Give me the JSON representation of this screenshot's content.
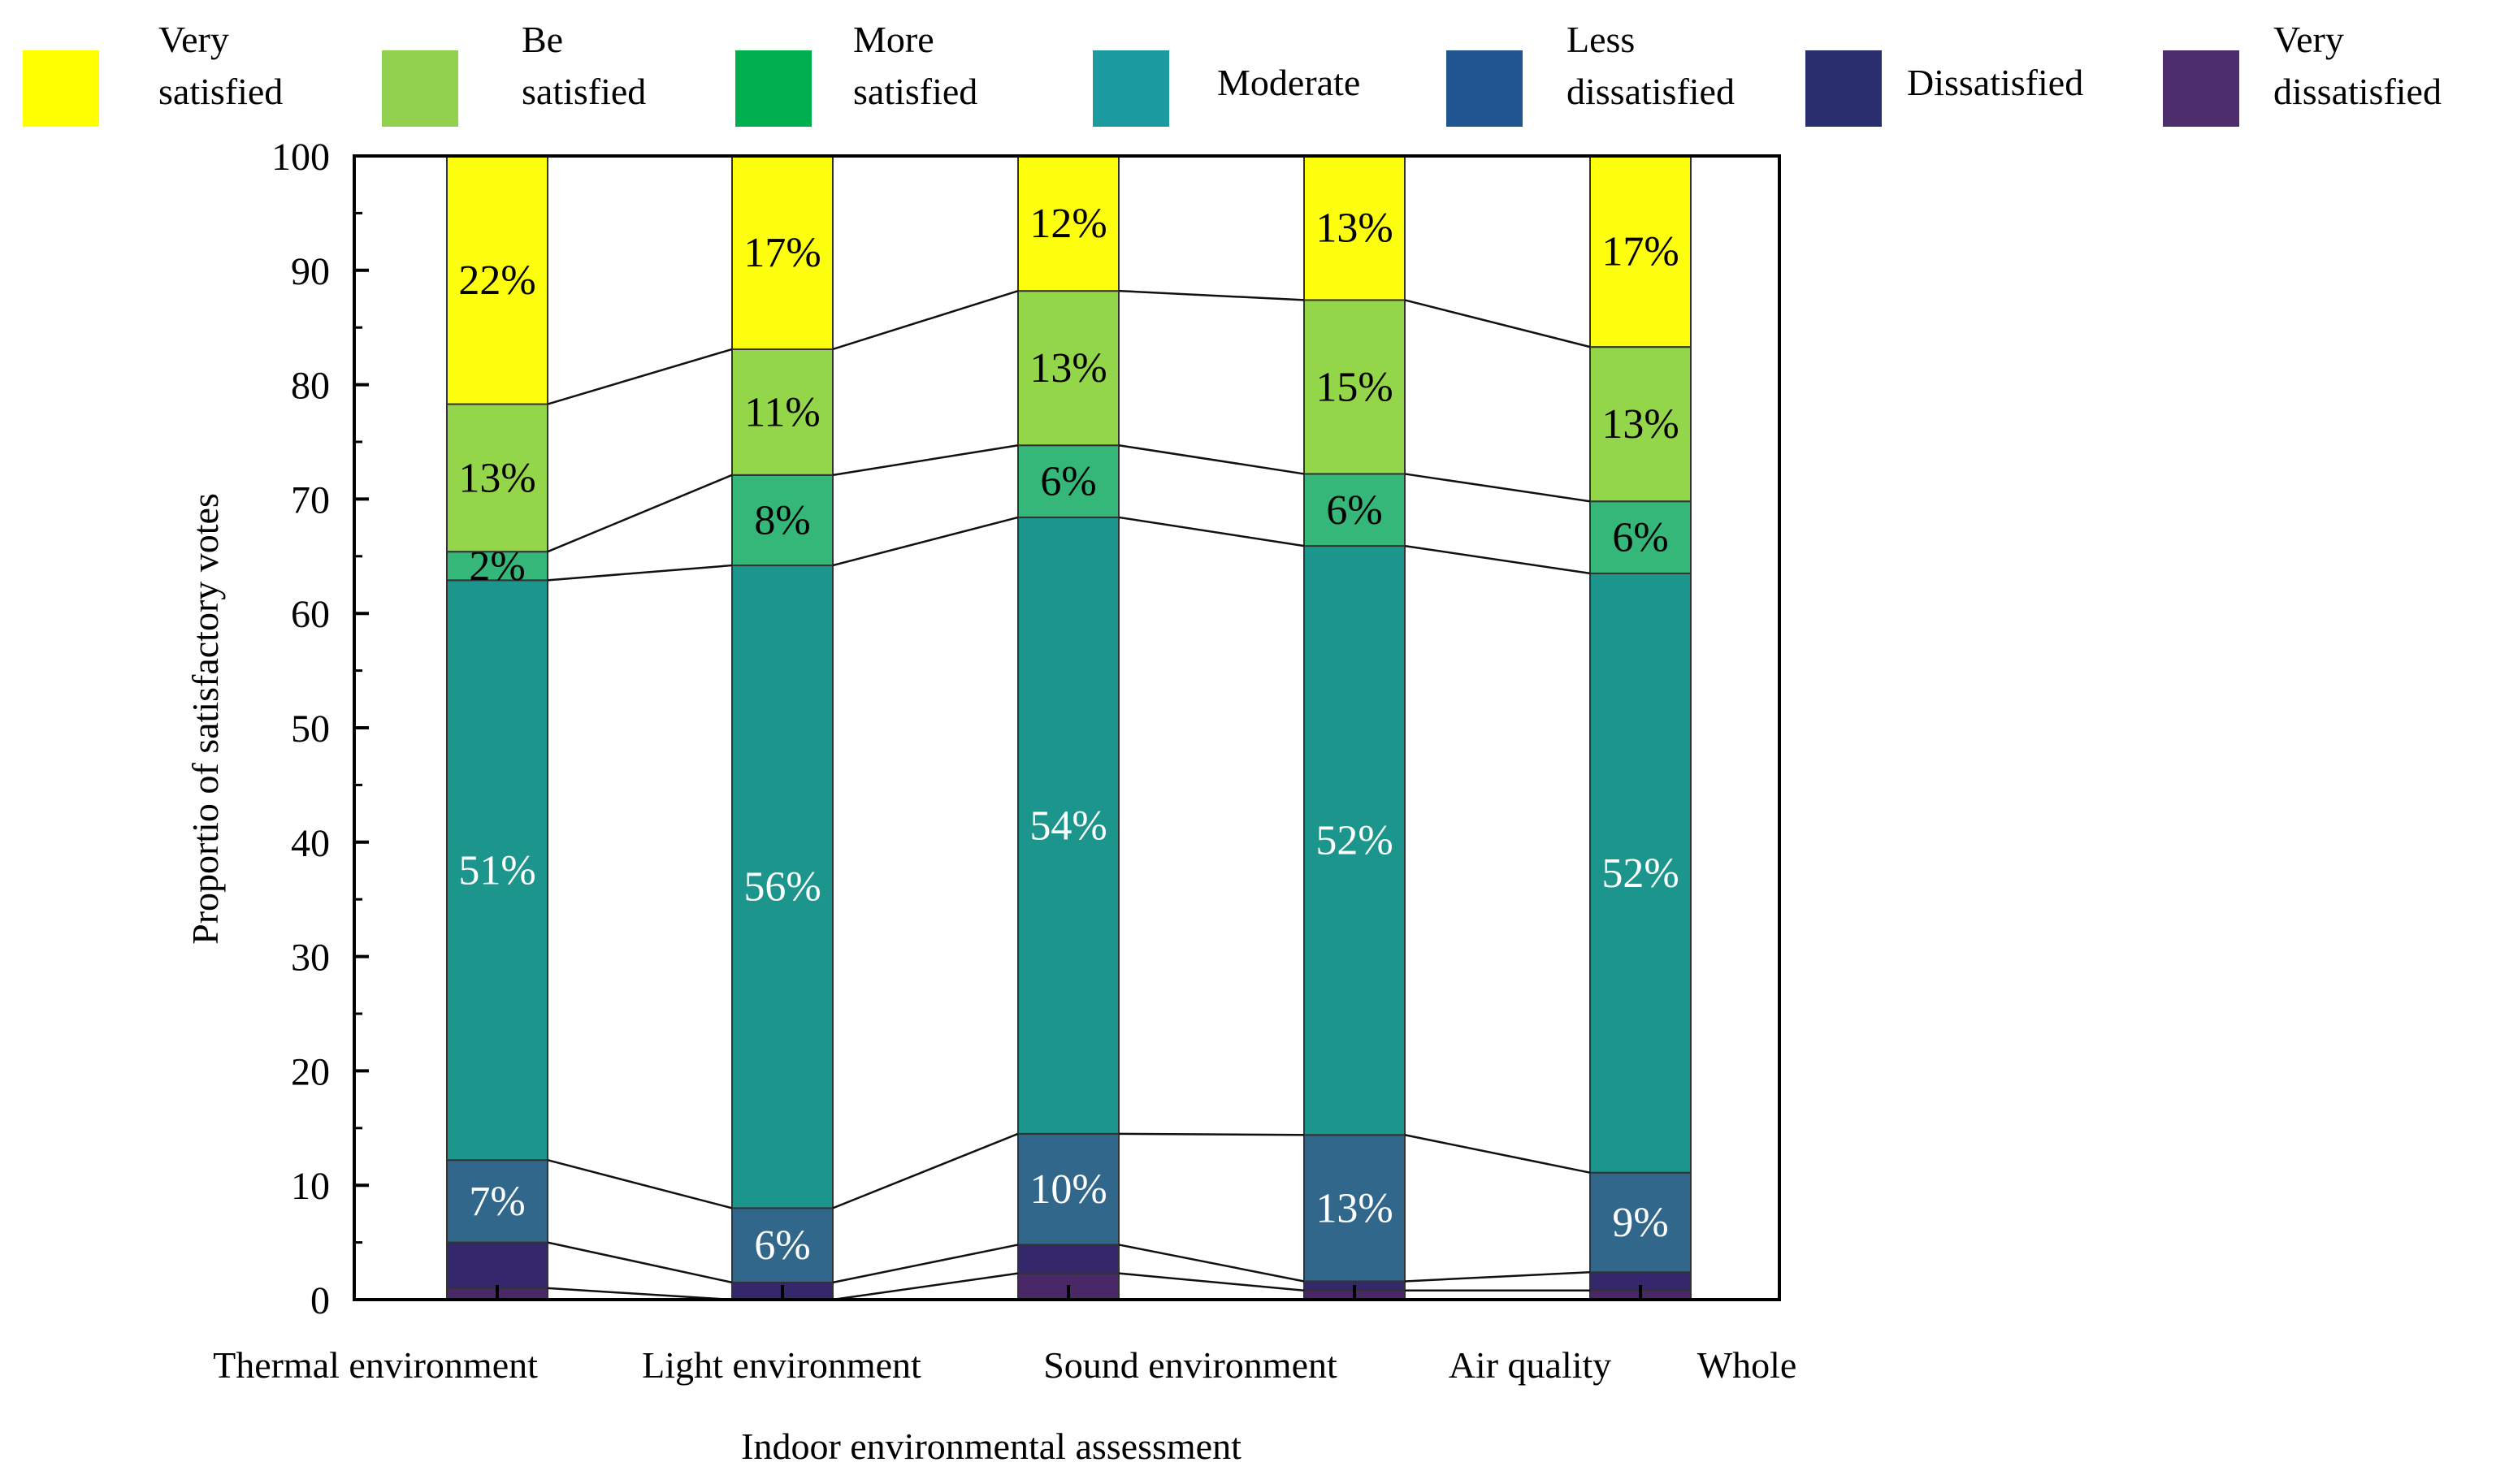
{
  "chart_data": {
    "type": "stacked-bar",
    "title": "",
    "xlabel": "Indoor environmental assessment",
    "ylabel": "Proportio of satisfactory votes",
    "ylim": [
      0,
      100
    ],
    "yticks": [
      "0",
      "10",
      "20",
      "30",
      "40",
      "50",
      "60",
      "70",
      "80",
      "90",
      "100"
    ],
    "categories": [
      "Thermal environment",
      "Light environment",
      "Sound environment",
      "Air quality",
      "Whole"
    ],
    "legend_position": "top",
    "series": [
      {
        "name": "Very dissatisfied",
        "label_lines": [
          "Very",
          "dissatisfied"
        ],
        "color": "#4a2766",
        "values": [
          1,
          0,
          2.3,
          0.8,
          0.8
        ],
        "labels": [
          "",
          "",
          "",
          "",
          ""
        ]
      },
      {
        "name": "Dissatisfied",
        "label_lines": [
          "Dissatisfied"
        ],
        "color": "#35276b",
        "values": [
          4,
          1.5,
          2.5,
          0.8,
          1.6
        ],
        "labels": [
          "",
          "",
          "",
          "",
          ""
        ]
      },
      {
        "name": "Less dissatisfied",
        "label_lines": [
          "Less",
          "dissatisfied"
        ],
        "color": "#32678c",
        "values": [
          7.2,
          6.5,
          9.7,
          12.8,
          8.7
        ],
        "labels": [
          "7%",
          "6%",
          "10%",
          "13%",
          "9%"
        ]
      },
      {
        "name": "Moderate",
        "label_lines": [
          "Moderate"
        ],
        "color": "#1c968c",
        "values": [
          50.7,
          56.2,
          53.9,
          51.5,
          52.4
        ],
        "labels": [
          "51%",
          "56%",
          "54%",
          "52%",
          "52%"
        ]
      },
      {
        "name": "More satisfied",
        "label_lines": [
          "More",
          "satisfied"
        ],
        "color": "#35b779",
        "values": [
          2.5,
          7.9,
          6.3,
          6.3,
          6.3
        ],
        "labels": [
          "2%",
          "8%",
          "6%",
          "6%",
          "6%"
        ]
      },
      {
        "name": "Be satisfied",
        "label_lines": [
          "Be",
          "satisfied"
        ],
        "color": "#93d64a",
        "values": [
          12.9,
          11.0,
          13.5,
          15.2,
          13.5
        ],
        "labels": [
          "13%",
          "11%",
          "13%",
          "15%",
          "13%"
        ]
      },
      {
        "name": "Very satisfied",
        "label_lines": [
          "Very",
          "satisfied"
        ],
        "color": "#fdfd0e",
        "values": [
          21.7,
          16.9,
          11.8,
          12.6,
          16.7
        ],
        "labels": [
          "22%",
          "17%",
          "12%",
          "13%",
          "17%"
        ]
      }
    ],
    "legend_order": [
      "Very satisfied",
      "Be satisfied",
      "More satisfied",
      "Moderate",
      "Less dissatisfied",
      "Dissatisfied",
      "Very dissatisfied"
    ],
    "legend_colors": {
      "Very satisfied": "#ffff00",
      "Be satisfied": "#92d050",
      "More satisfied": "#00b050",
      "Moderate": "#1b9aa0",
      "Less dissatisfied": "#1f5590",
      "Dissatisfied": "#2b2e6e",
      "Very dissatisfied": "#4e2d6e"
    },
    "label_text_color": {
      "Less dissatisfied": "#ffffff",
      "Moderate": "#ffffff",
      "More satisfied": "#000000",
      "Be satisfied": "#000000",
      "Very satisfied": "#000000"
    }
  }
}
